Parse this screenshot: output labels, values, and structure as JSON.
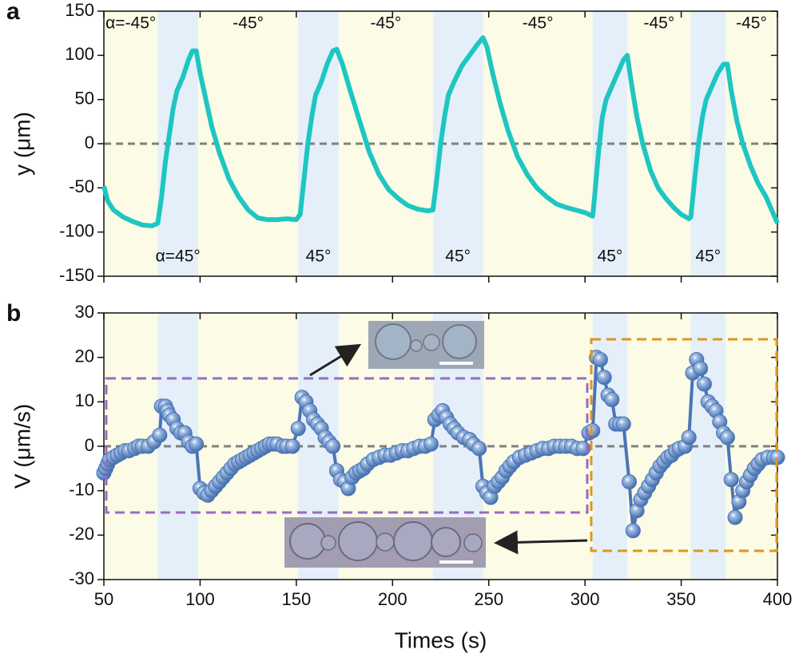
{
  "chart_data": [
    {
      "type": "line",
      "panel_label": "a",
      "ylabel": "y (μm)",
      "xlim": [
        50,
        400
      ],
      "xticks": [
        50,
        100,
        150,
        200,
        250,
        300,
        350,
        400
      ],
      "ylim": [
        -150,
        150
      ],
      "yticks": [
        -150,
        -100,
        -50,
        0,
        50,
        100,
        150
      ],
      "reference_line": 0,
      "regions": [
        {
          "start": 50,
          "end": 78,
          "color": "#fbfbe6",
          "label": "α=-45°"
        },
        {
          "start": 78,
          "end": 99,
          "color": "#e4effa",
          "label": "α=45°"
        },
        {
          "start": 99,
          "end": 151,
          "color": "#fbfbe6",
          "label": "-45°"
        },
        {
          "start": 151,
          "end": 172,
          "color": "#e4effa",
          "label": "45°"
        },
        {
          "start": 172,
          "end": 221,
          "color": "#fbfbe6",
          "label": "-45°"
        },
        {
          "start": 221,
          "end": 247,
          "color": "#e4effa",
          "label": "45°"
        },
        {
          "start": 247,
          "end": 304,
          "color": "#fbfbe6",
          "label": "-45°"
        },
        {
          "start": 304,
          "end": 322,
          "color": "#e4effa",
          "label": "45°"
        },
        {
          "start": 322,
          "end": 355,
          "color": "#fbfbe6",
          "label": "-45°"
        },
        {
          "start": 355,
          "end": 373,
          "color": "#e4effa",
          "label": "45°"
        },
        {
          "start": 373,
          "end": 400,
          "color": "#fbfbe6",
          "label": "-45°"
        }
      ],
      "series": [
        {
          "color": "#1ec6c2",
          "x": [
            50,
            52,
            55,
            60,
            65,
            70,
            75,
            78,
            80,
            82,
            84,
            86,
            88,
            91,
            94,
            96,
            98,
            100,
            103,
            106,
            110,
            115,
            120,
            125,
            130,
            135,
            140,
            145,
            150,
            152,
            154,
            156,
            158,
            160,
            163,
            166,
            169,
            171,
            174,
            178,
            183,
            188,
            193,
            198,
            203,
            208,
            213,
            218,
            221,
            223,
            225,
            227,
            229,
            232,
            236,
            240,
            244,
            247,
            249,
            252,
            256,
            260,
            265,
            270,
            275,
            280,
            285,
            290,
            295,
            300,
            304,
            305,
            307,
            309,
            311,
            314,
            317,
            320,
            322,
            324,
            327,
            330,
            334,
            338,
            342,
            346,
            350,
            354,
            355,
            357,
            359,
            361,
            363,
            366,
            369,
            372,
            374,
            376,
            379,
            382,
            386,
            390,
            394,
            398,
            400
          ],
          "values": [
            -48,
            -65,
            -75,
            -83,
            -88,
            -92,
            -93,
            -90,
            -60,
            -20,
            10,
            40,
            60,
            75,
            95,
            105,
            105,
            80,
            50,
            20,
            -10,
            -40,
            -60,
            -75,
            -84,
            -86,
            -86,
            -85,
            -86,
            -80,
            -40,
            0,
            30,
            55,
            70,
            90,
            105,
            107,
            90,
            60,
            25,
            -10,
            -35,
            -52,
            -62,
            -70,
            -74,
            -76,
            -75,
            -40,
            0,
            30,
            55,
            70,
            88,
            100,
            112,
            120,
            110,
            80,
            45,
            15,
            -15,
            -35,
            -50,
            -60,
            -68,
            -72,
            -75,
            -78,
            -82,
            -60,
            -10,
            30,
            50,
            65,
            80,
            95,
            100,
            70,
            30,
            0,
            -30,
            -50,
            -62,
            -72,
            -80,
            -85,
            -83,
            -40,
            0,
            30,
            50,
            65,
            80,
            90,
            90,
            60,
            25,
            0,
            -25,
            -45,
            -60,
            -80,
            -90
          ]
        }
      ]
    },
    {
      "type": "scatter",
      "panel_label": "b",
      "ylabel": "V (μm/s)",
      "xlabel": "Times (s)",
      "xlim": [
        50,
        400
      ],
      "xticks": [
        50,
        100,
        150,
        200,
        250,
        300,
        350,
        400
      ],
      "ylim": [
        -30,
        30
      ],
      "yticks": [
        -30,
        -20,
        -10,
        0,
        10,
        20,
        30
      ],
      "reference_line": 0,
      "regions": [
        {
          "start": 50,
          "end": 78,
          "color": "#fbfbe6"
        },
        {
          "start": 78,
          "end": 99,
          "color": "#e4effa"
        },
        {
          "start": 99,
          "end": 151,
          "color": "#fbfbe6"
        },
        {
          "start": 151,
          "end": 172,
          "color": "#e4effa"
        },
        {
          "start": 172,
          "end": 221,
          "color": "#fbfbe6"
        },
        {
          "start": 221,
          "end": 247,
          "color": "#e4effa"
        },
        {
          "start": 247,
          "end": 304,
          "color": "#fbfbe6"
        },
        {
          "start": 304,
          "end": 322,
          "color": "#e4effa"
        },
        {
          "start": 322,
          "end": 355,
          "color": "#fbfbe6"
        },
        {
          "start": 355,
          "end": 373,
          "color": "#e4effa"
        },
        {
          "start": 373,
          "end": 400,
          "color": "#fbfbe6"
        }
      ],
      "series": [
        {
          "color": "#4a75b5",
          "x": [
            50,
            51,
            52,
            53,
            55,
            57,
            59,
            61,
            63,
            66,
            68,
            70,
            73,
            76,
            79,
            80,
            82,
            83,
            84,
            86,
            88,
            90,
            92,
            94,
            96,
            98,
            100,
            102,
            104,
            106,
            108,
            110,
            112,
            114,
            116,
            118,
            120,
            122,
            124,
            126,
            128,
            130,
            132,
            134,
            136,
            138,
            140,
            143,
            145,
            148,
            151,
            153,
            155,
            157,
            159,
            161,
            163,
            165,
            167,
            169,
            171,
            173,
            175,
            177,
            179,
            181,
            183,
            185,
            187,
            190,
            193,
            196,
            199,
            202,
            205,
            208,
            211,
            214,
            217,
            220,
            222,
            224,
            226,
            228,
            230,
            232,
            234,
            237,
            240,
            242,
            245,
            247,
            249,
            251,
            253,
            255,
            257,
            259,
            261,
            263,
            266,
            269,
            272,
            275,
            278,
            281,
            284,
            287,
            290,
            293,
            296,
            299,
            302,
            304,
            306,
            308,
            310,
            312,
            314,
            316,
            318,
            320,
            323,
            325,
            327,
            329,
            331,
            333,
            335,
            337,
            339,
            341,
            343,
            345,
            347,
            349,
            352,
            354,
            356,
            358,
            360,
            362,
            364,
            366,
            368,
            370,
            372,
            374,
            376,
            378,
            380,
            382,
            384,
            386,
            388,
            390,
            392,
            395,
            398,
            400
          ],
          "values": [
            -6,
            -5,
            -4,
            -3,
            -2.5,
            -2,
            -1.5,
            -1,
            -1,
            -0.5,
            0,
            0,
            0,
            1,
            2.5,
            9,
            9,
            8,
            7,
            6,
            4,
            3,
            3,
            1,
            0,
            0.5,
            -9.5,
            -10.5,
            -11,
            -10,
            -9,
            -8,
            -7,
            -6,
            -5,
            -4,
            -3.5,
            -3,
            -2.5,
            -2,
            -1.5,
            -1,
            -0.5,
            0,
            0.5,
            0.5,
            0.5,
            0,
            0,
            0,
            4,
            11,
            10,
            8,
            6,
            5,
            4,
            2,
            1,
            0,
            -5.5,
            -7.5,
            -8,
            -9.5,
            -7,
            -6,
            -5.5,
            -5,
            -4,
            -3,
            -2.5,
            -2,
            -2,
            -1.5,
            -1,
            -1,
            -0.5,
            0,
            0,
            0.5,
            6,
            7,
            8,
            6.5,
            5,
            4,
            3,
            2,
            1.5,
            0.5,
            -0.5,
            -9,
            -10.5,
            -11.5,
            -9,
            -8,
            -7,
            -5.5,
            -4.5,
            -3.5,
            -2.5,
            -2,
            -1.5,
            -1,
            -0.5,
            -0.5,
            0,
            0,
            0,
            0,
            -0.5,
            -0.5,
            3,
            3.5,
            20,
            19.5,
            15.5,
            11.5,
            10.5,
            5,
            5,
            5,
            -8,
            -19,
            -14.5,
            -12,
            -10.5,
            -9,
            -7.5,
            -6,
            -4.5,
            -3.5,
            -2.5,
            -2,
            -1,
            -0.5,
            0,
            2,
            16.5,
            19.5,
            17.5,
            14,
            10,
            9,
            8,
            5.5,
            3,
            2,
            -7.5,
            -16,
            -12.5,
            -10,
            -8,
            -6.5,
            -5,
            -4,
            -3,
            -2.5,
            -2.5,
            -2.5
          ]
        }
      ]
    }
  ]
}
